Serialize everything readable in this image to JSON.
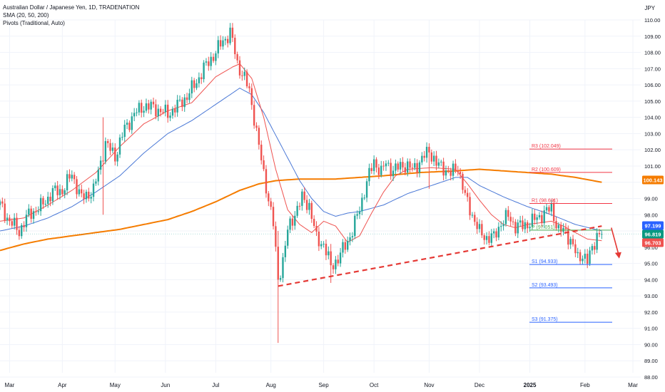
{
  "header": {
    "symbol": "Australian Dollar / Japanese Yen, 1D, TRADENATION",
    "indicator_sma": "SMA (20, 50, 200)",
    "indicator_pivots": "Pivots (Traditional, Auto)"
  },
  "currency": "JPY",
  "colors": {
    "candle_up": "#26a69a",
    "candle_down": "#ef5350",
    "sma20": "#ef5350",
    "sma50": "#4a78d6",
    "sma200": "#f57c00",
    "pivot_resistance": "#f23645",
    "pivot_support": "#2962ff",
    "pivot_p": "#4caf50",
    "trendline": "#e53935"
  },
  "chart_data": {
    "type": "candlestick",
    "symbol": "AUDJPY",
    "timeframe": "1D",
    "ylim": [
      88,
      110.5
    ],
    "y_ticks": [
      "110.00",
      "109.00",
      "108.00",
      "107.00",
      "106.00",
      "105.00",
      "104.00",
      "103.00",
      "102.00",
      "101.00",
      "100.00",
      "99.00",
      "98.00",
      "97.00",
      "96.00",
      "95.00",
      "94.00",
      "93.00",
      "92.00",
      "91.00",
      "90.00",
      "89.00",
      "88.00"
    ],
    "x_labels": [
      {
        "label": "Mar",
        "i": 4
      },
      {
        "label": "Apr",
        "i": 26
      },
      {
        "label": "May",
        "i": 48
      },
      {
        "label": "Jun",
        "i": 69
      },
      {
        "label": "Jul",
        "i": 90
      },
      {
        "label": "Aug",
        "i": 113
      },
      {
        "label": "Sep",
        "i": 135
      },
      {
        "label": "Oct",
        "i": 156
      },
      {
        "label": "Nov",
        "i": 179
      },
      {
        "label": "Dec",
        "i": 200
      },
      {
        "label": "2025",
        "i": 221
      },
      {
        "label": "Feb",
        "i": 244
      },
      {
        "label": "Mar",
        "i": 264
      }
    ],
    "anchors": [
      [
        0,
        98.6
      ],
      [
        4,
        97.6
      ],
      [
        8,
        97.0
      ],
      [
        12,
        98.0
      ],
      [
        17,
        98.5
      ],
      [
        22,
        99.4
      ],
      [
        26,
        99.5
      ],
      [
        30,
        100.5
      ],
      [
        34,
        99.0
      ],
      [
        39,
        99.5
      ],
      [
        44,
        102.4
      ],
      [
        48,
        101.6
      ],
      [
        52,
        103.3
      ],
      [
        56,
        104.2
      ],
      [
        60,
        104.7
      ],
      [
        64,
        104.6
      ],
      [
        70,
        104.2
      ],
      [
        74,
        104.7
      ],
      [
        78,
        105.3
      ],
      [
        82,
        106.2
      ],
      [
        85,
        107.0
      ],
      [
        88,
        107.6
      ],
      [
        93,
        108.7
      ],
      [
        96,
        109.2
      ],
      [
        97,
        108.7
      ],
      [
        99,
        107.3
      ],
      [
        102,
        106.4
      ],
      [
        104,
        105.6
      ],
      [
        106,
        104.0
      ],
      [
        108,
        102.2
      ],
      [
        110,
        100.5
      ],
      [
        112,
        99.0
      ],
      [
        114,
        97.4
      ],
      [
        116,
        94.0
      ],
      [
        118,
        95.2
      ],
      [
        120,
        97.0
      ],
      [
        123,
        98.1
      ],
      [
        126,
        99.0
      ],
      [
        129,
        98.6
      ],
      [
        132,
        96.5
      ],
      [
        135,
        96.2
      ],
      [
        138,
        94.8
      ],
      [
        141,
        95.3
      ],
      [
        144,
        96.1
      ],
      [
        147,
        97.0
      ],
      [
        150,
        98.4
      ],
      [
        153,
        100.0
      ],
      [
        156,
        101.3
      ],
      [
        159,
        100.6
      ],
      [
        161,
        101.2
      ],
      [
        164,
        100.7
      ],
      [
        168,
        101.1
      ],
      [
        172,
        100.8
      ],
      [
        176,
        101.4
      ],
      [
        179,
        102.0
      ],
      [
        182,
        101.1
      ],
      [
        185,
        100.9
      ],
      [
        188,
        100.5
      ],
      [
        191,
        101.0
      ],
      [
        194,
        99.1
      ],
      [
        197,
        98.0
      ],
      [
        200,
        96.9
      ],
      [
        203,
        96.6
      ],
      [
        206,
        96.6
      ],
      [
        209,
        97.5
      ],
      [
        212,
        97.9
      ],
      [
        215,
        97.3
      ],
      [
        218,
        97.3
      ],
      [
        222,
        97.6
      ],
      [
        226,
        98.0
      ],
      [
        230,
        98.4
      ],
      [
        233,
        97.0
      ],
      [
        236,
        97.0
      ],
      [
        238,
        96.4
      ],
      [
        241,
        95.3
      ],
      [
        243,
        95.6
      ],
      [
        245,
        95.1
      ],
      [
        247,
        95.9
      ],
      [
        249,
        96.8
      ],
      [
        251,
        96.8
      ]
    ],
    "sma": [
      {
        "period": 20,
        "points": [
          [
            0,
            97.6
          ],
          [
            10,
            97.8
          ],
          [
            20,
            98.6
          ],
          [
            30,
            99.5
          ],
          [
            40,
            100.6
          ],
          [
            50,
            102.2
          ],
          [
            60,
            103.6
          ],
          [
            70,
            104.4
          ],
          [
            80,
            104.9
          ],
          [
            90,
            106.5
          ],
          [
            97,
            107.1
          ],
          [
            100,
            107.3
          ],
          [
            105,
            106.4
          ],
          [
            110,
            104.0
          ],
          [
            115,
            100.8
          ],
          [
            120,
            98.3
          ],
          [
            125,
            97.4
          ],
          [
            130,
            96.9
          ],
          [
            135,
            97.6
          ],
          [
            140,
            97.3
          ],
          [
            145,
            96.3
          ],
          [
            150,
            96.7
          ],
          [
            155,
            98.1
          ],
          [
            160,
            99.4
          ],
          [
            165,
            100.4
          ],
          [
            170,
            100.8
          ],
          [
            180,
            100.9
          ],
          [
            190,
            100.8
          ],
          [
            195,
            99.9
          ],
          [
            200,
            98.9
          ],
          [
            205,
            98.0
          ],
          [
            210,
            97.4
          ],
          [
            215,
            97.2
          ],
          [
            220,
            97.4
          ],
          [
            225,
            97.5
          ],
          [
            230,
            97.6
          ],
          [
            235,
            97.3
          ],
          [
            240,
            96.9
          ],
          [
            245,
            96.5
          ],
          [
            251,
            96.4
          ]
        ]
      },
      {
        "period": 50,
        "points": [
          [
            0,
            97.0
          ],
          [
            10,
            97.3
          ],
          [
            20,
            97.8
          ],
          [
            30,
            98.5
          ],
          [
            40,
            99.4
          ],
          [
            50,
            100.4
          ],
          [
            60,
            101.8
          ],
          [
            70,
            103.0
          ],
          [
            80,
            103.8
          ],
          [
            90,
            104.8
          ],
          [
            95,
            105.3
          ],
          [
            100,
            105.8
          ],
          [
            105,
            105.4
          ],
          [
            110,
            104.3
          ],
          [
            115,
            102.9
          ],
          [
            120,
            101.5
          ],
          [
            125,
            100.1
          ],
          [
            130,
            99.0
          ],
          [
            135,
            98.2
          ],
          [
            140,
            97.9
          ],
          [
            145,
            98.1
          ],
          [
            150,
            98.2
          ],
          [
            160,
            98.6
          ],
          [
            170,
            99.3
          ],
          [
            180,
            99.8
          ],
          [
            190,
            100.3
          ],
          [
            195,
            100.3
          ],
          [
            200,
            99.8
          ],
          [
            210,
            99.1
          ],
          [
            220,
            98.5
          ],
          [
            230,
            98.0
          ],
          [
            240,
            97.4
          ],
          [
            251,
            97.0
          ]
        ]
      },
      {
        "period": 200,
        "points": [
          [
            0,
            95.8
          ],
          [
            10,
            96.2
          ],
          [
            20,
            96.5
          ],
          [
            30,
            96.7
          ],
          [
            40,
            96.9
          ],
          [
            50,
            97.1
          ],
          [
            60,
            97.4
          ],
          [
            70,
            97.7
          ],
          [
            80,
            98.2
          ],
          [
            90,
            98.8
          ],
          [
            100,
            99.5
          ],
          [
            108,
            99.9
          ],
          [
            115,
            100.1
          ],
          [
            125,
            100.2
          ],
          [
            140,
            100.2
          ],
          [
            160,
            100.4
          ],
          [
            175,
            100.6
          ],
          [
            190,
            100.7
          ],
          [
            200,
            100.8
          ],
          [
            210,
            100.7
          ],
          [
            220,
            100.6
          ],
          [
            230,
            100.5
          ],
          [
            240,
            100.3
          ],
          [
            251,
            100.0
          ]
        ]
      }
    ],
    "pivots": [
      {
        "label": "R3 (102.049)",
        "value": 102.049
      },
      {
        "label": "R2 (100.609)",
        "value": 100.609
      },
      {
        "label": "R1 (98.691)",
        "value": 98.691
      },
      {
        "label": "P (97.051)",
        "value": 97.051
      },
      {
        "label": "S1 (94.933)",
        "value": 94.933
      },
      {
        "label": "S2 (93.493)",
        "value": 93.493
      },
      {
        "label": "S3 (91.375)",
        "value": 91.375
      }
    ],
    "trendline": {
      "from": [
        116,
        93.6
      ],
      "to": [
        251,
        97.3
      ]
    },
    "arrow": {
      "from": [
        255,
        97.2
      ],
      "to": [
        258,
        95.3
      ]
    },
    "price_labels": [
      {
        "value": "100.143",
        "type": "sma200"
      },
      {
        "value": "97.199",
        "type": "sma50"
      },
      {
        "value": "96.819",
        "type": "last"
      },
      {
        "value": "96.703",
        "type": "sma20"
      }
    ],
    "last_price": 96.819
  }
}
